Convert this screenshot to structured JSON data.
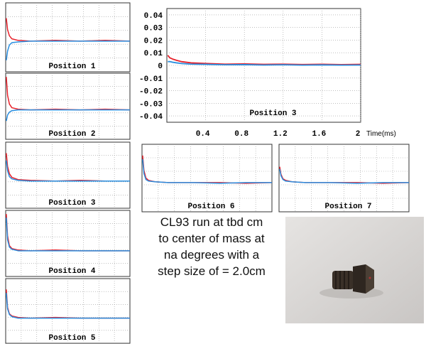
{
  "chart_data": [
    {
      "type": "line",
      "title": "Position 3",
      "x_label": "Time(ms)",
      "x": [
        0.01,
        0.03,
        0.06,
        0.1,
        0.15,
        0.25,
        0.4,
        0.6,
        0.8,
        1.0,
        1.2,
        1.4,
        1.6,
        1.8,
        2.0
      ],
      "series": [
        {
          "color": "#e8202a",
          "values": [
            0.008,
            0.006,
            0.005,
            0.004,
            0.003,
            0.002,
            0.0015,
            0.001,
            0.0012,
            0.0008,
            0.001,
            0.0007,
            0.0009,
            0.0006,
            0.0008
          ]
        },
        {
          "color": "#2a8fe0",
          "values": [
            0.003,
            0.003,
            0.0025,
            0.002,
            0.0015,
            0.001,
            0.0008,
            0.0005,
            0.0006,
            0.0003,
            0.0005,
            0.0002,
            0.0004,
            0.0002,
            0.0003
          ]
        }
      ],
      "xlim": [
        0,
        2
      ],
      "ylim": [
        -0.045,
        0.045
      ],
      "xticks": [
        0.4,
        0.8,
        1.2,
        1.6,
        2
      ],
      "yticks": [
        0.04,
        0.03,
        0.02,
        0.01,
        0,
        -0.01,
        -0.02,
        -0.03,
        -0.04
      ],
      "grid": true
    },
    {
      "type": "line",
      "title": "Position 1",
      "x": [
        0.01,
        0.03,
        0.06,
        0.1,
        0.2,
        0.4,
        0.8,
        1.2,
        1.6,
        2.0
      ],
      "xlim": [
        0,
        2
      ],
      "ylim": [
        -0.045,
        0.045
      ],
      "series": [
        {
          "color": "#e8202a",
          "values": [
            0.025,
            0.01,
            0.002,
            -0.002,
            -0.004,
            -0.005,
            -0.004,
            -0.005,
            -0.004,
            -0.005
          ]
        },
        {
          "color": "#2a8fe0",
          "values": [
            -0.03,
            -0.018,
            -0.01,
            -0.007,
            -0.006,
            -0.005,
            -0.005,
            -0.005,
            -0.005,
            -0.005
          ]
        }
      ]
    },
    {
      "type": "line",
      "title": "Position 2",
      "x": [
        0.01,
        0.03,
        0.06,
        0.1,
        0.2,
        0.4,
        0.8,
        1.2,
        1.6,
        2.0
      ],
      "xlim": [
        0,
        2
      ],
      "ylim": [
        -0.045,
        0.045
      ],
      "series": [
        {
          "color": "#e8202a",
          "values": [
            0.04,
            0.015,
            0.003,
            -0.002,
            -0.004,
            -0.005,
            -0.004,
            -0.005,
            -0.004,
            -0.005
          ]
        },
        {
          "color": "#2a8fe0",
          "values": [
            -0.02,
            -0.012,
            -0.008,
            -0.006,
            -0.005,
            -0.005,
            -0.005,
            -0.005,
            -0.005,
            -0.005
          ]
        }
      ]
    },
    {
      "type": "line",
      "title": "Position 3",
      "x": [
        0.01,
        0.03,
        0.06,
        0.1,
        0.2,
        0.4,
        0.8,
        1.2,
        1.6,
        2.0
      ],
      "xlim": [
        0,
        2
      ],
      "ylim": [
        -0.045,
        0.045
      ],
      "series": [
        {
          "color": "#e8202a",
          "values": [
            0.03,
            0.012,
            0.002,
            -0.003,
            -0.006,
            -0.007,
            -0.008,
            -0.007,
            -0.008,
            -0.008
          ]
        },
        {
          "color": "#2a8fe0",
          "values": [
            0.02,
            0.006,
            -0.002,
            -0.005,
            -0.007,
            -0.008,
            -0.008,
            -0.008,
            -0.008,
            -0.008
          ]
        }
      ]
    },
    {
      "type": "line",
      "title": "Position 4",
      "x": [
        0.01,
        0.03,
        0.06,
        0.1,
        0.2,
        0.4,
        0.8,
        1.2,
        1.6,
        2.0
      ],
      "xlim": [
        0,
        2
      ],
      "ylim": [
        -0.045,
        0.045
      ],
      "series": [
        {
          "color": "#e8202a",
          "values": [
            0.04,
            0.01,
            -0.003,
            -0.007,
            -0.009,
            -0.01,
            -0.009,
            -0.01,
            -0.01,
            -0.01
          ]
        },
        {
          "color": "#2a8fe0",
          "values": [
            0.035,
            0.005,
            -0.005,
            -0.008,
            -0.01,
            -0.01,
            -0.01,
            -0.01,
            -0.01,
            -0.01
          ]
        }
      ]
    },
    {
      "type": "line",
      "title": "Position 5",
      "x": [
        0.01,
        0.03,
        0.06,
        0.1,
        0.2,
        0.4,
        0.8,
        1.2,
        1.6,
        2.0
      ],
      "xlim": [
        0,
        2
      ],
      "ylim": [
        -0.045,
        0.045
      ],
      "series": [
        {
          "color": "#e8202a",
          "values": [
            0.03,
            0.005,
            -0.004,
            -0.007,
            -0.009,
            -0.01,
            -0.009,
            -0.01,
            -0.01,
            -0.01
          ]
        },
        {
          "color": "#2a8fe0",
          "values": [
            0.025,
            0.003,
            -0.005,
            -0.008,
            -0.01,
            -0.01,
            -0.01,
            -0.01,
            -0.01,
            -0.01
          ]
        }
      ]
    },
    {
      "type": "line",
      "title": "Position 6",
      "x": [
        0.01,
        0.03,
        0.06,
        0.1,
        0.2,
        0.4,
        0.8,
        1.2,
        1.6,
        2.0
      ],
      "xlim": [
        0,
        2
      ],
      "ylim": [
        -0.045,
        0.045
      ],
      "series": [
        {
          "color": "#e8202a",
          "values": [
            0.03,
            0.01,
            0.0,
            -0.003,
            -0.005,
            -0.006,
            -0.006,
            -0.006,
            -0.007,
            -0.006
          ]
        },
        {
          "color": "#2a8fe0",
          "values": [
            0.025,
            0.006,
            -0.002,
            -0.004,
            -0.005,
            -0.006,
            -0.006,
            -0.007,
            -0.006,
            -0.006
          ]
        }
      ]
    },
    {
      "type": "line",
      "title": "Position 7",
      "x": [
        0.01,
        0.03,
        0.06,
        0.1,
        0.2,
        0.4,
        0.8,
        1.2,
        1.6,
        2.0
      ],
      "xlim": [
        0,
        2
      ],
      "ylim": [
        -0.045,
        0.045
      ],
      "series": [
        {
          "color": "#e8202a",
          "values": [
            0.015,
            0.005,
            -0.001,
            -0.003,
            -0.005,
            -0.006,
            -0.006,
            -0.006,
            -0.007,
            -0.006
          ]
        },
        {
          "color": "#2a8fe0",
          "values": [
            0.012,
            0.003,
            -0.002,
            -0.004,
            -0.005,
            -0.006,
            -0.006,
            -0.007,
            -0.006,
            -0.006
          ]
        }
      ]
    }
  ],
  "caption": [
    "CL93 run at tbd cm",
    "to center of mass at",
    "na degrees with a",
    "step size of = 2.0cm"
  ]
}
